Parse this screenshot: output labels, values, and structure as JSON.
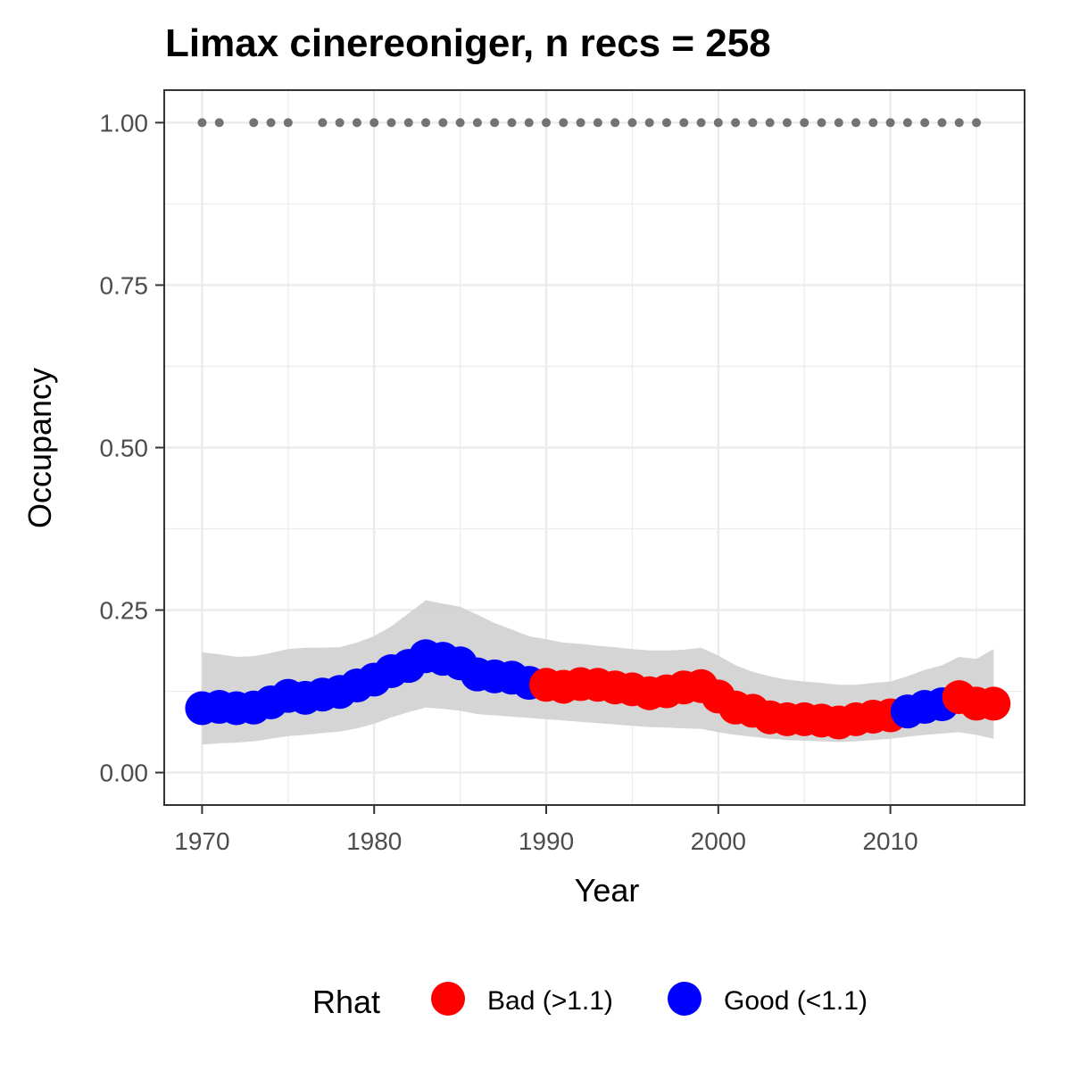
{
  "chart_data": {
    "type": "line",
    "title": "Limax cinereoniger, n recs = 258",
    "xlabel": "Year",
    "ylabel": "Occupancy",
    "xlim": [
      1967.8,
      2017.8
    ],
    "ylim": [
      -0.05,
      1.05
    ],
    "x_ticks": [
      1970,
      1980,
      1990,
      2000,
      2010
    ],
    "x_tick_labels": [
      "1970",
      "1980",
      "1990",
      "2000",
      "2010"
    ],
    "y_ticks": [
      0,
      0.25,
      0.5,
      0.75,
      1.0
    ],
    "y_tick_labels": [
      "0.00",
      "0.25",
      "0.50",
      "0.75",
      "1.00"
    ],
    "grid": true,
    "x": [
      1970,
      1971,
      1972,
      1973,
      1974,
      1975,
      1976,
      1977,
      1978,
      1979,
      1980,
      1981,
      1982,
      1983,
      1984,
      1985,
      1986,
      1987,
      1988,
      1989,
      1990,
      1991,
      1992,
      1993,
      1994,
      1995,
      1996,
      1997,
      1998,
      1999,
      2000,
      2001,
      2002,
      2003,
      2004,
      2005,
      2006,
      2007,
      2008,
      2009,
      2010,
      2011,
      2012,
      2013,
      2014,
      2015,
      2016
    ],
    "occupancy": [
      0.099,
      0.101,
      0.099,
      0.1,
      0.108,
      0.118,
      0.115,
      0.12,
      0.124,
      0.134,
      0.143,
      0.156,
      0.164,
      0.179,
      0.175,
      0.168,
      0.151,
      0.148,
      0.146,
      0.138,
      0.135,
      0.132,
      0.136,
      0.135,
      0.131,
      0.128,
      0.122,
      0.125,
      0.131,
      0.133,
      0.117,
      0.1,
      0.095,
      0.085,
      0.082,
      0.082,
      0.08,
      0.077,
      0.082,
      0.086,
      0.088,
      0.094,
      0.101,
      0.105,
      0.116,
      0.106,
      0.106
    ],
    "lower": [
      0.043,
      0.045,
      0.046,
      0.048,
      0.052,
      0.056,
      0.058,
      0.061,
      0.063,
      0.068,
      0.075,
      0.085,
      0.093,
      0.1,
      0.098,
      0.095,
      0.09,
      0.088,
      0.086,
      0.084,
      0.082,
      0.08,
      0.078,
      0.076,
      0.074,
      0.072,
      0.07,
      0.069,
      0.068,
      0.067,
      0.062,
      0.058,
      0.055,
      0.052,
      0.05,
      0.049,
      0.048,
      0.047,
      0.048,
      0.05,
      0.052,
      0.055,
      0.058,
      0.06,
      0.062,
      0.058,
      0.052
    ],
    "upper": [
      0.185,
      0.182,
      0.178,
      0.179,
      0.184,
      0.19,
      0.192,
      0.192,
      0.193,
      0.2,
      0.21,
      0.225,
      0.245,
      0.265,
      0.26,
      0.255,
      0.243,
      0.23,
      0.22,
      0.21,
      0.205,
      0.2,
      0.198,
      0.195,
      0.193,
      0.19,
      0.188,
      0.188,
      0.189,
      0.192,
      0.18,
      0.165,
      0.155,
      0.148,
      0.143,
      0.14,
      0.138,
      0.135,
      0.135,
      0.138,
      0.14,
      0.148,
      0.158,
      0.165,
      0.178,
      0.175,
      0.19
    ],
    "rhat_status": [
      "good",
      "good",
      "good",
      "good",
      "good",
      "good",
      "good",
      "good",
      "good",
      "good",
      "good",
      "good",
      "good",
      "good",
      "good",
      "good",
      "good",
      "good",
      "good",
      "good",
      "bad",
      "bad",
      "bad",
      "bad",
      "bad",
      "bad",
      "bad",
      "bad",
      "bad",
      "bad",
      "bad",
      "bad",
      "bad",
      "bad",
      "bad",
      "bad",
      "bad",
      "bad",
      "bad",
      "bad",
      "bad",
      "good",
      "good",
      "good",
      "bad",
      "bad",
      "bad"
    ],
    "record_years": [
      1970,
      1971,
      1973,
      1974,
      1975,
      1977,
      1978,
      1979,
      1980,
      1981,
      1982,
      1983,
      1984,
      1985,
      1986,
      1987,
      1988,
      1989,
      1990,
      1991,
      1992,
      1993,
      1994,
      1995,
      1996,
      1997,
      1998,
      1999,
      2000,
      2001,
      2002,
      2003,
      2004,
      2005,
      2006,
      2007,
      2008,
      2009,
      2010,
      2011,
      2012,
      2013,
      2014,
      2015
    ],
    "record_y": 1.0,
    "legend": {
      "title": "Rhat",
      "position": "bottom",
      "entries": [
        {
          "key": "bad",
          "label": "Bad (>1.1)",
          "color": "#ff0000"
        },
        {
          "key": "good",
          "label": "Good (<1.1)",
          "color": "#0000ff"
        }
      ]
    },
    "colors": {
      "bad": "#ff0000",
      "good": "#0000ff",
      "ribbon": "#d3d3d3",
      "record_dots": "#737373",
      "grid": "#ebebeb",
      "panel_border": "#333333"
    }
  }
}
